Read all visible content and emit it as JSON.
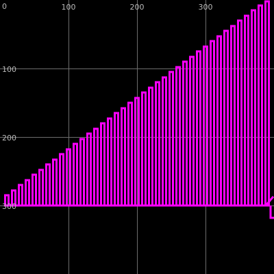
{
  "chart_data": {
    "type": "bar",
    "title": "",
    "xlabel": "",
    "ylabel": "",
    "x_axis": {
      "range": [
        0,
        400
      ],
      "ticks": [
        100,
        200,
        300
      ],
      "tick_labels": [
        "100",
        "200",
        "300"
      ],
      "position": "top"
    },
    "y_axis": {
      "range": [
        0,
        400
      ],
      "ticks": [
        0,
        100,
        200,
        300
      ],
      "tick_labels": [
        "0",
        "100",
        "200",
        "300"
      ],
      "inverted": true,
      "position": "left"
    },
    "grid": true,
    "legend": "none",
    "baseline_y": 300,
    "series": [
      {
        "color": "#ff00ff",
        "x": [
          10,
          20,
          30,
          40,
          50,
          60,
          70,
          80,
          90,
          100,
          110,
          120,
          130,
          140,
          150,
          160,
          170,
          180,
          190,
          200,
          210,
          220,
          230,
          240,
          250,
          260,
          270,
          280,
          290,
          300,
          310,
          320,
          330,
          340,
          350,
          360,
          370,
          380,
          390
        ],
        "y": [
          285,
          278,
          270,
          263,
          255,
          248,
          240,
          233,
          225,
          218,
          210,
          203,
          195,
          188,
          180,
          173,
          165,
          158,
          150,
          143,
          135,
          128,
          120,
          113,
          105,
          98,
          90,
          83,
          75,
          68,
          60,
          53,
          45,
          38,
          30,
          23,
          15,
          8,
          2
        ]
      }
    ],
    "marker_icon": "cursor-arrow-icon"
  },
  "colors": {
    "background": "#000000",
    "grid": "#6e6e6e",
    "tick_text": "#b9b9b9",
    "bars": "#ff00ff"
  }
}
